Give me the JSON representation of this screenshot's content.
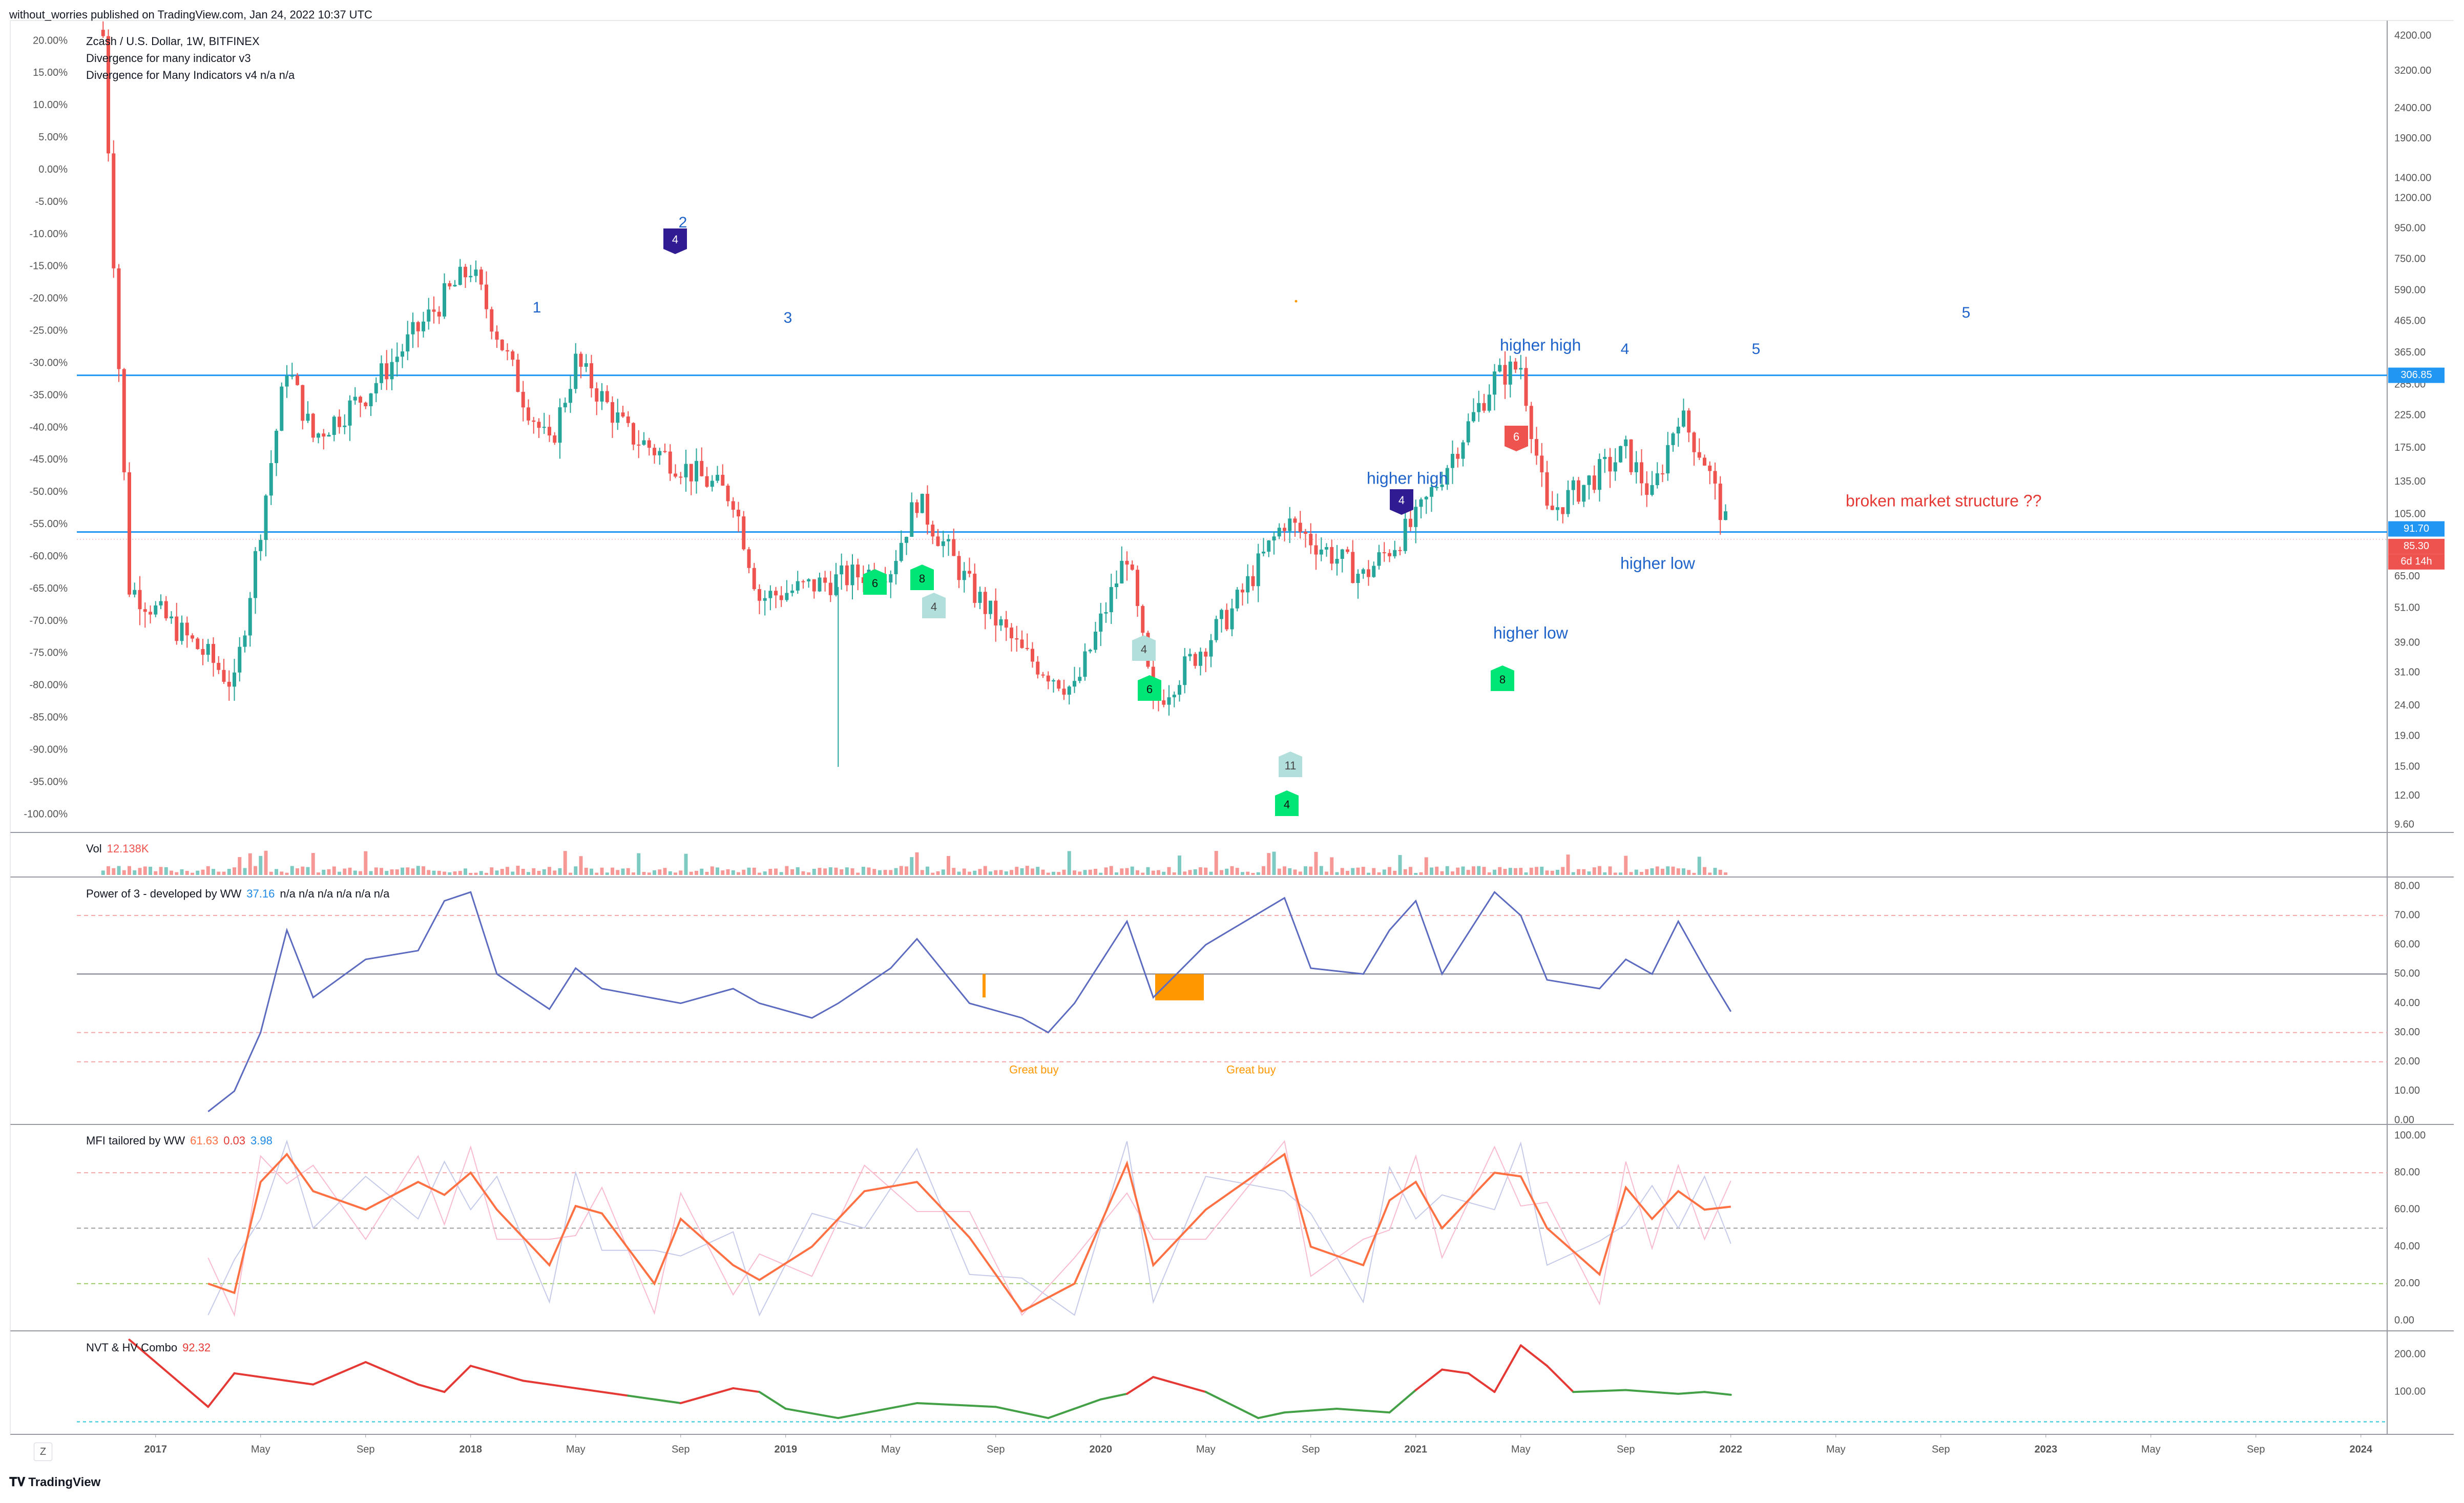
{
  "header": {
    "publish_line": "without_worries published on TradingView.com, Jan 24, 2022 10:37 UTC"
  },
  "main_pane": {
    "legend": [
      "Zcash / U.S. Dollar, 1W, BITFINEX",
      "Divergence for many indicator v3",
      "Divergence for Many Indicators v4  n/a  n/a"
    ],
    "pct_ticks": [
      "20.00%",
      "15.00%",
      "10.00%",
      "5.00%",
      "0.00%",
      "-5.00%",
      "-10.00%",
      "-15.00%",
      "-20.00%",
      "-25.00%",
      "-30.00%",
      "-35.00%",
      "-40.00%",
      "-45.00%",
      "-50.00%",
      "-55.00%",
      "-60.00%",
      "-65.00%",
      "-70.00%",
      "-75.00%",
      "-80.00%",
      "-85.00%",
      "-90.00%",
      "-95.00%",
      "-100.00%"
    ],
    "price_ticks": [
      "4200.00",
      "3200.00",
      "2400.00",
      "1900.00",
      "1400.00",
      "1200.00",
      "950.00",
      "750.00",
      "590.00",
      "465.00",
      "365.00",
      "285.00",
      "225.00",
      "175.00",
      "135.00",
      "105.00",
      "81.00",
      "65.00",
      "51.00",
      "39.00",
      "31.00",
      "24.00",
      "19.00",
      "15.00",
      "12.00",
      "9.60"
    ],
    "price_tags": {
      "resistance": "306.85",
      "support": "91.70",
      "last": "85.30",
      "countdown": "6d 14h"
    },
    "annotations": {
      "wave_1": "1",
      "wave_2": "2",
      "wave_3": "3",
      "wave_4": "4",
      "wave_5": "5",
      "wave_5_future": "5",
      "higher_high_1": "higher high",
      "higher_high_2": "higher high",
      "higher_low_1": "higher low",
      "higher_low_2": "higher low",
      "broken": "broken market structure  ??"
    },
    "markers": [
      "4",
      "6",
      "8",
      "4",
      "4",
      "6",
      "4",
      "11",
      "4",
      "6",
      "8"
    ]
  },
  "volume_pane": {
    "label": "Vol",
    "value": "12.138K"
  },
  "power3_pane": {
    "label": "Power of 3 - developed by WW",
    "value": "37.16",
    "na": "n/a  n/a  n/a  n/a  n/a  n/a",
    "ticks": [
      "80.00",
      "70.00",
      "60.00",
      "50.00",
      "40.00",
      "30.00",
      "20.00",
      "10.00",
      "0.00"
    ],
    "great_buy_1": "Great buy",
    "great_buy_2": "Great buy"
  },
  "mfi_pane": {
    "label": "MFI tailored by WW",
    "v1": "61.63",
    "v2": "0.03",
    "v3": "3.98",
    "ticks": [
      "100.00",
      "80.00",
      "60.00",
      "40.00",
      "20.00",
      "0.00"
    ]
  },
  "nvt_pane": {
    "label": "NVT & HV Combo",
    "value": "92.32",
    "ticks": [
      "200.00",
      "100.00"
    ]
  },
  "time_axis": [
    "2017",
    "May",
    "Sep",
    "2018",
    "May",
    "Sep",
    "2019",
    "May",
    "Sep",
    "2020",
    "May",
    "Sep",
    "2021",
    "May",
    "Sep",
    "2022",
    "May",
    "Sep",
    "2023",
    "May",
    "Sep",
    "2024"
  ],
  "footer": {
    "brand": "TradingView",
    "z_button": "Z"
  },
  "colors": {
    "up": "#26a69a",
    "down": "#ef5350",
    "line": "#2196f3",
    "label_red": "#e53935",
    "purple": "#311b92",
    "green_marker": "#00e676",
    "orange": "#ff9800",
    "mfi": "#ff7043"
  },
  "chart_data": {
    "type": "candlestick",
    "title": "Zcash / U.S. Dollar, 1W, BITFINEX",
    "x_range": [
      "2016-10",
      "2024-02"
    ],
    "y_scale": "log",
    "y_range": [
      9.6,
      4200
    ],
    "horizontal_levels": [
      306.85,
      91.7
    ],
    "last_price": 85.3,
    "key_points": [
      {
        "date": "2016-11",
        "price": 4200
      },
      {
        "date": "2016-12",
        "price": 60
      },
      {
        "date": "2017-03",
        "price": 35
      },
      {
        "date": "2017-04",
        "price": 28
      },
      {
        "date": "2017-06",
        "price": 330
      },
      {
        "date": "2017-07",
        "price": 190
      },
      {
        "date": "2017-09",
        "price": 265
      },
      {
        "date": "2017-12",
        "price": 560
      },
      {
        "date": "2018-01",
        "price": 700
      },
      {
        "date": "2018-03",
        "price": 260
      },
      {
        "date": "2018-04",
        "price": 175
      },
      {
        "date": "2018-05",
        "price": 340
      },
      {
        "date": "2018-07",
        "price": 195
      },
      {
        "date": "2018-11",
        "price": 120
      },
      {
        "date": "2018-12",
        "price": 55
      },
      {
        "date": "2019-05",
        "price": 70
      },
      {
        "date": "2019-06",
        "price": 118
      },
      {
        "date": "2019-08",
        "price": 60
      },
      {
        "date": "2019-10",
        "price": 36
      },
      {
        "date": "2019-12",
        "price": 27
      },
      {
        "date": "2020-02",
        "price": 78
      },
      {
        "date": "2020-03",
        "price": 24
      },
      {
        "date": "2020-06",
        "price": 50
      },
      {
        "date": "2020-08",
        "price": 100
      },
      {
        "date": "2020-11",
        "price": 65
      },
      {
        "date": "2021-01",
        "price": 100
      },
      {
        "date": "2021-04",
        "price": 300
      },
      {
        "date": "2021-05",
        "price": 330
      },
      {
        "date": "2021-06",
        "price": 105
      },
      {
        "date": "2021-09",
        "price": 170
      },
      {
        "date": "2021-10",
        "price": 120
      },
      {
        "date": "2021-11",
        "price": 230
      },
      {
        "date": "2021-12",
        "price": 160
      },
      {
        "date": "2022-01",
        "price": 85.3
      }
    ],
    "indicators": {
      "volume": {
        "last": "12.138K"
      },
      "power_of_3": {
        "ylim": [
          0,
          80
        ],
        "levels": [
          70,
          50,
          30,
          20
        ],
        "points": [
          [
            "2017-03",
            3
          ],
          [
            "2017-04",
            10
          ],
          [
            "2017-05",
            30
          ],
          [
            "2017-06",
            65
          ],
          [
            "2017-07",
            42
          ],
          [
            "2017-09",
            55
          ],
          [
            "2017-11",
            58
          ],
          [
            "2017-12",
            75
          ],
          [
            "2018-01",
            78
          ],
          [
            "2018-02",
            50
          ],
          [
            "2018-04",
            38
          ],
          [
            "2018-05",
            52
          ],
          [
            "2018-06",
            45
          ],
          [
            "2018-09",
            40
          ],
          [
            "2018-11",
            45
          ],
          [
            "2018-12",
            40
          ],
          [
            "2019-02",
            35
          ],
          [
            "2019-03",
            40
          ],
          [
            "2019-05",
            52
          ],
          [
            "2019-06",
            62
          ],
          [
            "2019-08",
            40
          ],
          [
            "2019-10",
            35
          ],
          [
            "2019-11",
            30
          ],
          [
            "2019-12",
            40
          ],
          [
            "2020-02",
            68
          ],
          [
            "2020-03",
            42
          ],
          [
            "2020-05",
            60
          ],
          [
            "2020-08",
            76
          ],
          [
            "2020-09",
            52
          ],
          [
            "2020-11",
            50
          ],
          [
            "2020-12",
            65
          ],
          [
            "2021-01",
            75
          ],
          [
            "2021-02",
            50
          ],
          [
            "2021-04",
            78
          ],
          [
            "2021-05",
            70
          ],
          [
            "2021-06",
            48
          ],
          [
            "2021-08",
            45
          ],
          [
            "2021-09",
            55
          ],
          [
            "2021-10",
            50
          ],
          [
            "2021-11",
            68
          ],
          [
            "2021-12",
            52
          ],
          [
            "2022-01",
            37.16
          ]
        ]
      },
      "mfi": {
        "ylim": [
          0,
          100
        ],
        "levels": [
          80,
          50,
          20
        ],
        "last": [
          61.63,
          0.03,
          3.98
        ],
        "points": [
          [
            "2017-03",
            20
          ],
          [
            "2017-04",
            15
          ],
          [
            "2017-05",
            75
          ],
          [
            "2017-06",
            90
          ],
          [
            "2017-07",
            70
          ],
          [
            "2017-09",
            60
          ],
          [
            "2017-11",
            75
          ],
          [
            "2017-12",
            68
          ],
          [
            "2018-01",
            80
          ],
          [
            "2018-02",
            60
          ],
          [
            "2018-04",
            30
          ],
          [
            "2018-05",
            62
          ],
          [
            "2018-06",
            58
          ],
          [
            "2018-08",
            20
          ],
          [
            "2018-09",
            55
          ],
          [
            "2018-11",
            30
          ],
          [
            "2018-12",
            22
          ],
          [
            "2019-02",
            40
          ],
          [
            "2019-04",
            70
          ],
          [
            "2019-06",
            75
          ],
          [
            "2019-08",
            45
          ],
          [
            "2019-10",
            5
          ],
          [
            "2019-12",
            20
          ],
          [
            "2020-02",
            85
          ],
          [
            "2020-03",
            30
          ],
          [
            "2020-05",
            60
          ],
          [
            "2020-08",
            90
          ],
          [
            "2020-09",
            40
          ],
          [
            "2020-11",
            30
          ],
          [
            "2020-12",
            65
          ],
          [
            "2021-01",
            75
          ],
          [
            "2021-02",
            50
          ],
          [
            "2021-04",
            80
          ],
          [
            "2021-05",
            78
          ],
          [
            "2021-06",
            50
          ],
          [
            "2021-08",
            25
          ],
          [
            "2021-09",
            72
          ],
          [
            "2021-10",
            55
          ],
          [
            "2021-11",
            70
          ],
          [
            "2021-12",
            60
          ],
          [
            "2022-01",
            61.63
          ]
        ]
      },
      "nvt_hv": {
        "ylim": [
          0,
          250
        ],
        "last": 92.32,
        "points": [
          [
            "2016-12",
            240
          ],
          [
            "2017-02",
            120
          ],
          [
            "2017-03",
            60
          ],
          [
            "2017-04",
            150
          ],
          [
            "2017-06",
            130
          ],
          [
            "2017-07",
            120
          ],
          [
            "2017-09",
            180
          ],
          [
            "2017-11",
            120
          ],
          [
            "2017-12",
            100
          ],
          [
            "2018-01",
            170
          ],
          [
            "2018-03",
            130
          ],
          [
            "2018-05",
            110
          ],
          [
            "2018-07",
            90
          ],
          [
            "2018-09",
            70
          ],
          [
            "2018-11",
            110
          ],
          [
            "2018-12",
            100
          ],
          [
            "2019-01",
            55
          ],
          [
            "2019-03",
            30
          ],
          [
            "2019-06",
            70
          ],
          [
            "2019-09",
            60
          ],
          [
            "2019-11",
            30
          ],
          [
            "2020-01",
            80
          ],
          [
            "2020-02",
            95
          ],
          [
            "2020-03",
            140
          ],
          [
            "2020-05",
            100
          ],
          [
            "2020-07",
            30
          ],
          [
            "2020-08",
            45
          ],
          [
            "2020-10",
            55
          ],
          [
            "2020-12",
            45
          ],
          [
            "2021-01",
            105
          ],
          [
            "2021-02",
            160
          ],
          [
            "2021-03",
            150
          ],
          [
            "2021-04",
            100
          ],
          [
            "2021-05",
            225
          ],
          [
            "2021-06",
            170
          ],
          [
            "2021-07",
            100
          ],
          [
            "2021-09",
            105
          ],
          [
            "2021-11",
            95
          ],
          [
            "2021-12",
            100
          ],
          [
            "2022-01",
            92.32
          ]
        ]
      }
    }
  }
}
